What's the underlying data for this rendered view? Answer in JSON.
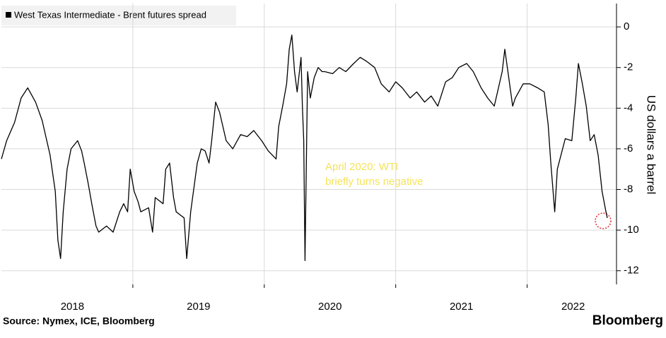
{
  "chart_data": {
    "type": "line",
    "title": "West Texas Intermediate - Brent futures spread",
    "y_label": "US dollars a barrel",
    "annotation": [
      "April 2020: WTI",
      "briefly turns negative"
    ],
    "source": "Source: Nymex, ICE, Bloomberg",
    "brand": "Bloomberg",
    "grid": true,
    "xlim": [
      2018,
      2022.68
    ],
    "xgrid": [
      2019,
      2020,
      2021,
      2022
    ],
    "xticks": [
      {
        "value": 2018.54,
        "label": "2018"
      },
      {
        "value": 2019.5,
        "label": "2019"
      },
      {
        "value": 2020.5,
        "label": "2020"
      },
      {
        "value": 2021.5,
        "label": "2021"
      },
      {
        "value": 2022.35,
        "label": "2022"
      }
    ],
    "ylim": [
      -12.67,
      1.15
    ],
    "yticks": [
      0,
      -2,
      -4,
      -6,
      -8,
      -10,
      -12
    ],
    "series": [
      {
        "name": "West Texas Intermediate - Brent futures spread",
        "color": "#000000",
        "x": [
          2018.0,
          2018.04,
          2018.1,
          2018.15,
          2018.2,
          2018.26,
          2018.31,
          2018.37,
          2018.41,
          2018.43,
          2018.45,
          2018.47,
          2018.5,
          2018.53,
          2018.58,
          2018.61,
          2018.63,
          2018.66,
          2018.69,
          2018.72,
          2018.74,
          2018.8,
          2018.85,
          2018.9,
          2018.93,
          2018.96,
          2018.98,
          2019.01,
          2019.04,
          2019.06,
          2019.12,
          2019.15,
          2019.17,
          2019.23,
          2019.25,
          2019.28,
          2019.31,
          2019.33,
          2019.39,
          2019.41,
          2019.44,
          2019.49,
          2019.52,
          2019.55,
          2019.58,
          2019.6,
          2019.63,
          2019.66,
          2019.71,
          2019.76,
          2019.82,
          2019.87,
          2019.92,
          2019.98,
          2020.03,
          2020.09,
          2020.11,
          2020.14,
          2020.17,
          2020.19,
          2020.21,
          2020.23,
          2020.25,
          2020.28,
          2020.29,
          2020.3,
          2020.31,
          2020.33,
          2020.35,
          2020.38,
          2020.41,
          2020.44,
          2020.46,
          2020.52,
          2020.57,
          2020.62,
          2020.68,
          2020.73,
          2020.78,
          2020.84,
          2020.89,
          2020.95,
          2021.0,
          2021.05,
          2021.11,
          2021.16,
          2021.22,
          2021.27,
          2021.32,
          2021.38,
          2021.43,
          2021.48,
          2021.54,
          2021.59,
          2021.65,
          2021.7,
          2021.75,
          2021.81,
          2021.83,
          2021.86,
          2021.89,
          2021.91,
          2021.97,
          2022.02,
          2022.08,
          2022.13,
          2022.16,
          2022.18,
          2022.21,
          2022.23,
          2022.29,
          2022.34,
          2022.37,
          2022.39,
          2022.42,
          2022.45,
          2022.48,
          2022.51,
          2022.54,
          2022.57,
          2022.6,
          2022.61
        ],
        "values": [
          -6.5,
          -5.6,
          -4.7,
          -3.5,
          -3.0,
          -3.7,
          -4.6,
          -6.3,
          -8.1,
          -10.5,
          -11.4,
          -9.1,
          -7.0,
          -6.0,
          -5.6,
          -6.1,
          -6.7,
          -7.7,
          -8.8,
          -9.8,
          -10.1,
          -9.8,
          -10.1,
          -9.1,
          -8.7,
          -9.1,
          -7.0,
          -8.1,
          -8.6,
          -9.1,
          -8.9,
          -10.1,
          -8.4,
          -8.7,
          -7.0,
          -6.7,
          -8.4,
          -9.1,
          -9.4,
          -11.4,
          -9.1,
          -6.7,
          -6.0,
          -6.1,
          -6.7,
          -5.6,
          -3.7,
          -4.2,
          -5.6,
          -6.0,
          -5.3,
          -5.4,
          -5.1,
          -5.6,
          -6.1,
          -6.5,
          -4.9,
          -3.9,
          -2.8,
          -1.1,
          -0.4,
          -2.2,
          -3.2,
          -1.5,
          -3.9,
          -5.6,
          -11.5,
          -2.2,
          -3.5,
          -2.5,
          -2.0,
          -2.2,
          -2.2,
          -2.3,
          -2.0,
          -2.2,
          -1.8,
          -1.5,
          -1.7,
          -2.0,
          -2.8,
          -3.2,
          -2.7,
          -3.0,
          -3.5,
          -3.2,
          -3.7,
          -3.4,
          -3.9,
          -2.7,
          -2.5,
          -2.0,
          -1.8,
          -2.2,
          -3.0,
          -3.5,
          -3.9,
          -2.2,
          -1.1,
          -2.5,
          -3.9,
          -3.5,
          -2.8,
          -2.8,
          -3.0,
          -3.2,
          -4.8,
          -6.7,
          -9.1,
          -7.0,
          -5.5,
          -5.6,
          -3.5,
          -1.8,
          -2.8,
          -3.9,
          -5.6,
          -5.3,
          -6.3,
          -8.1,
          -9.1,
          -9.4
        ]
      }
    ]
  }
}
